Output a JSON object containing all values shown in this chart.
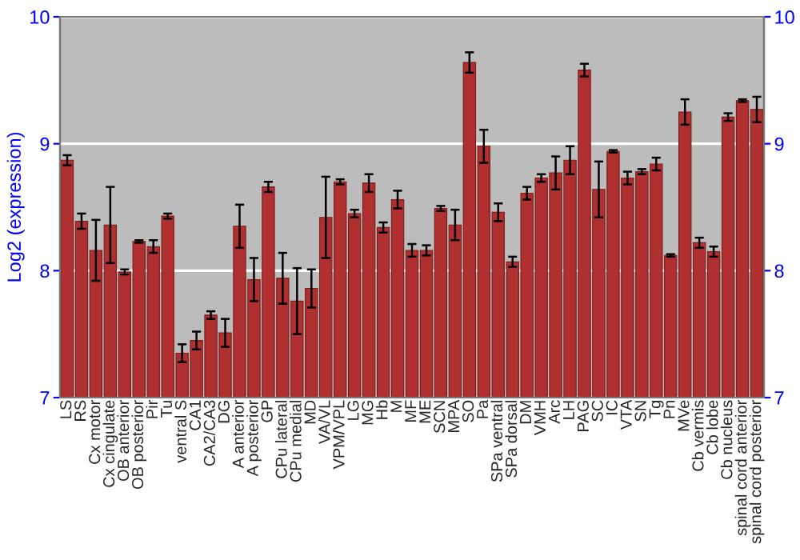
{
  "chart_data": {
    "type": "bar",
    "ylabel": "Log2 (expression)",
    "categories": [
      "LS",
      "RS",
      "Cx motor",
      "Cx cingulate",
      "OB anterior",
      "OB posterior",
      "Pir",
      "Tu",
      "ventral S",
      "CA1",
      "CA2/CA3",
      "DG",
      "A anterior",
      "A posterior",
      "GP",
      "CPu lateral",
      "CPu medial",
      "MD",
      "VA/VL",
      "VPM/VPL",
      "LG",
      "MG",
      "Hb",
      "M",
      "MF",
      "ME",
      "SCN",
      "MPA",
      "SO",
      "Pa",
      "SPa ventral",
      "SPa dorsal",
      "DM",
      "VMH",
      "Arc",
      "LH",
      "PAG",
      "SC",
      "IC",
      "VTA",
      "SN",
      "Tg",
      "Pn",
      "MVe",
      "Cb vermis",
      "Cb lobe",
      "Cb nucleus",
      "spinal cord anterior",
      "spinal cord posterior"
    ],
    "values": [
      8.87,
      8.39,
      8.16,
      8.36,
      7.99,
      8.23,
      8.19,
      8.43,
      7.35,
      7.45,
      7.65,
      7.51,
      8.35,
      7.93,
      8.66,
      7.94,
      7.76,
      7.86,
      8.42,
      8.7,
      8.45,
      8.69,
      8.34,
      8.56,
      8.16,
      8.16,
      8.49,
      8.36,
      9.64,
      8.98,
      8.46,
      8.07,
      8.61,
      8.73,
      8.77,
      8.87,
      9.58,
      8.64,
      8.94,
      8.73,
      8.78,
      8.84,
      8.12,
      9.25,
      8.22,
      8.15,
      9.21,
      9.34,
      9.27
    ],
    "errors": [
      0.04,
      0.06,
      0.24,
      0.3,
      0.02,
      0.01,
      0.05,
      0.02,
      0.07,
      0.07,
      0.03,
      0.11,
      0.17,
      0.17,
      0.04,
      0.2,
      0.26,
      0.15,
      0.32,
      0.02,
      0.03,
      0.07,
      0.04,
      0.07,
      0.05,
      0.04,
      0.02,
      0.12,
      0.08,
      0.13,
      0.07,
      0.04,
      0.05,
      0.03,
      0.13,
      0.11,
      0.05,
      0.22,
      0.01,
      0.05,
      0.02,
      0.05,
      0.01,
      0.1,
      0.04,
      0.04,
      0.03,
      0.01,
      0.1
    ],
    "color": "#b03030",
    "ylim": [
      7,
      10
    ],
    "yticks": [
      7,
      8,
      9,
      10
    ],
    "y2lim": [
      7,
      10
    ],
    "y2ticks": [
      7,
      8,
      9,
      10
    ],
    "grid": "y"
  }
}
